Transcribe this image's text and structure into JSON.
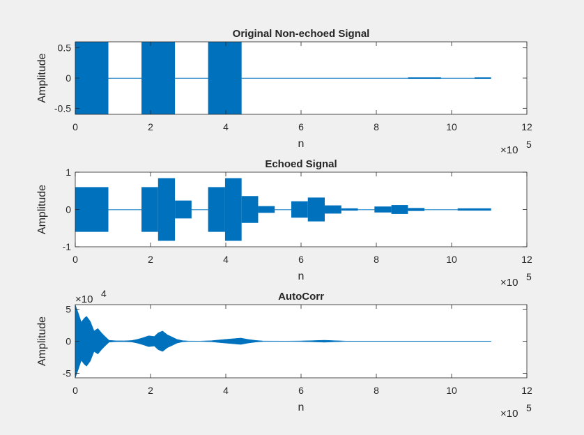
{
  "chart_data": [
    {
      "type": "line",
      "title": "Original Non-echoed Signal",
      "xlabel": "n",
      "ylabel": "Amplitude",
      "xlim": [
        0,
        1200000
      ],
      "ylim": [
        -0.6,
        0.6
      ],
      "xticks": [
        0,
        2,
        4,
        6,
        8,
        10,
        12
      ],
      "yticks": [
        -0.5,
        0,
        0.5
      ],
      "ytick_labels": [
        "-0.5",
        "0",
        "0.5"
      ],
      "x_exponent_label": "×10",
      "x_exponent": "5",
      "y_exponent_label": "",
      "y_exponent": "",
      "grid": false,
      "series_color": "#0072bd",
      "series": [
        {
          "envelope": [
            {
              "x": [
                0,
                88000
              ],
              "amplitude": 0.6
            },
            {
              "x": [
                88000,
                176000
              ],
              "amplitude": 0.003
            },
            {
              "x": [
                176000,
                265000
              ],
              "amplitude": 0.6
            },
            {
              "x": [
                265000,
                353000
              ],
              "amplitude": 0.003
            },
            {
              "x": [
                353000,
                442000
              ],
              "amplitude": 0.6
            },
            {
              "x": [
                442000,
                884000
              ],
              "amplitude": 0.003
            },
            {
              "x": [
                884000,
                972000
              ],
              "amplitude": 0.012
            },
            {
              "x": [
                972000,
                1061000
              ],
              "amplitude": 0.003
            },
            {
              "x": [
                1061000,
                1105000
              ],
              "amplitude": 0.012
            }
          ]
        }
      ]
    },
    {
      "type": "line",
      "title": "Echoed Signal",
      "xlabel": "n",
      "ylabel": "Amplitude",
      "xlim": [
        0,
        1200000
      ],
      "ylim": [
        -1,
        1
      ],
      "xticks": [
        0,
        2,
        4,
        6,
        8,
        10,
        12
      ],
      "yticks": [
        -1,
        0,
        1
      ],
      "ytick_labels": [
        "-1",
        "0",
        "1"
      ],
      "x_exponent_label": "×10",
      "x_exponent": "5",
      "y_exponent_label": "",
      "y_exponent": "",
      "grid": false,
      "series_color": "#0072bd",
      "series": [
        {
          "envelope": [
            {
              "x": [
                0,
                88000
              ],
              "amplitude": 0.6
            },
            {
              "x": [
                88000,
                176000
              ],
              "amplitude": 0.003
            },
            {
              "x": [
                176000,
                220000
              ],
              "amplitude": 0.6
            },
            {
              "x": [
                220000,
                265000
              ],
              "amplitude": 0.84
            },
            {
              "x": [
                265000,
                309000
              ],
              "amplitude": 0.24
            },
            {
              "x": [
                309000,
                353000
              ],
              "amplitude": 0.003
            },
            {
              "x": [
                353000,
                398000
              ],
              "amplitude": 0.6
            },
            {
              "x": [
                398000,
                442000
              ],
              "amplitude": 0.84
            },
            {
              "x": [
                442000,
                486000
              ],
              "amplitude": 0.36
            },
            {
              "x": [
                486000,
                530000
              ],
              "amplitude": 0.09
            },
            {
              "x": [
                530000,
                574000
              ],
              "amplitude": 0.003
            },
            {
              "x": [
                574000,
                618000
              ],
              "amplitude": 0.22
            },
            {
              "x": [
                618000,
                663000
              ],
              "amplitude": 0.32
            },
            {
              "x": [
                663000,
                707000
              ],
              "amplitude": 0.11
            },
            {
              "x": [
                707000,
                751000
              ],
              "amplitude": 0.03
            },
            {
              "x": [
                751000,
                795000
              ],
              "amplitude": 0.003
            },
            {
              "x": [
                795000,
                840000
              ],
              "amplitude": 0.08
            },
            {
              "x": [
                840000,
                884000
              ],
              "amplitude": 0.12
            },
            {
              "x": [
                884000,
                928000
              ],
              "amplitude": 0.04
            },
            {
              "x": [
                928000,
                1016000
              ],
              "amplitude": 0.003
            },
            {
              "x": [
                1016000,
                1105000
              ],
              "amplitude": 0.03
            }
          ]
        }
      ]
    },
    {
      "type": "line",
      "title": "AutoCorr",
      "xlabel": "n",
      "ylabel": "Amplitude",
      "xlim": [
        0,
        1200000
      ],
      "ylim": [
        -57000,
        57000
      ],
      "xticks": [
        0,
        2,
        4,
        6,
        8,
        10,
        12
      ],
      "yticks": [
        -50000,
        0,
        50000
      ],
      "ytick_labels": [
        "-5",
        "0",
        "5"
      ],
      "x_exponent_label": "×10",
      "x_exponent": "5",
      "y_exponent_label": "×10",
      "y_exponent": "4",
      "grid": false,
      "series_color": "#0072bd",
      "series": [
        {
          "envelope_points": [
            [
              0,
              57000
            ],
            [
              8000,
              44000
            ],
            [
              16000,
              30000
            ],
            [
              24000,
              36000
            ],
            [
              30000,
              39000
            ],
            [
              40000,
              31000
            ],
            [
              50000,
              16000
            ],
            [
              60000,
              20000
            ],
            [
              70000,
              13000
            ],
            [
              80000,
              7000
            ],
            [
              90000,
              1500
            ],
            [
              110000,
              700
            ],
            [
              130000,
              700
            ],
            [
              150000,
              1200
            ],
            [
              165000,
              3000
            ],
            [
              180000,
              5500
            ],
            [
              195000,
              8500
            ],
            [
              210000,
              7500
            ],
            [
              220000,
              13000
            ],
            [
              232000,
              16000
            ],
            [
              245000,
              10000
            ],
            [
              258000,
              6500
            ],
            [
              270000,
              3000
            ],
            [
              285000,
              1000
            ],
            [
              300000,
              400
            ],
            [
              330000,
              300
            ],
            [
              360000,
              800
            ],
            [
              390000,
              2500
            ],
            [
              420000,
              4000
            ],
            [
              440000,
              5000
            ],
            [
              458000,
              3000
            ],
            [
              480000,
              1300
            ],
            [
              500000,
              400
            ],
            [
              560000,
              200
            ],
            [
              600000,
              500
            ],
            [
              630000,
              1000
            ],
            [
              662000,
              1600
            ],
            [
              690000,
              900
            ],
            [
              720000,
              300
            ],
            [
              760000,
              120
            ],
            [
              800000,
              80
            ],
            [
              900000,
              60
            ],
            [
              1000000,
              40
            ],
            [
              1105000,
              30
            ]
          ]
        }
      ]
    }
  ]
}
